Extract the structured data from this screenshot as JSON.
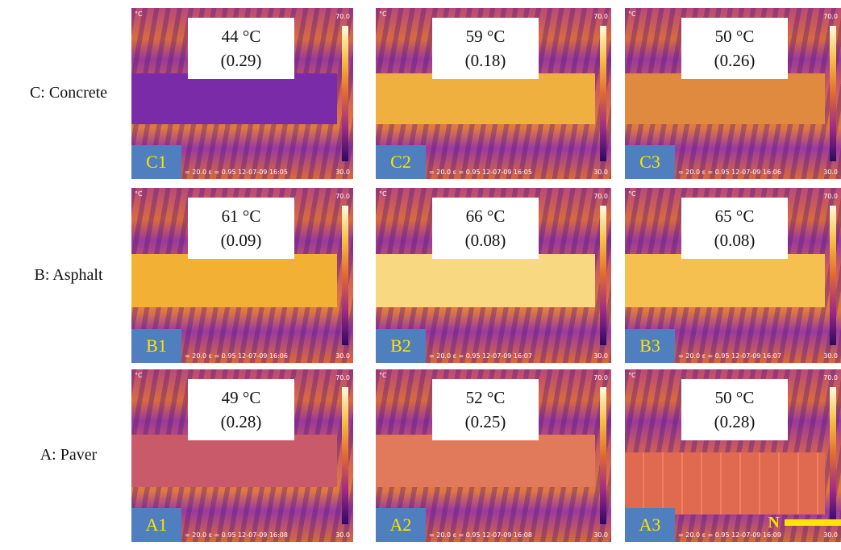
{
  "rows": [
    {
      "label": "C: Concrete",
      "panels": [
        {
          "id": "C1",
          "temperature": "44 °C",
          "albedo": "(0.29)",
          "stamp": "= 20.0  ε = 0.95  12-07-09 16:05"
        },
        {
          "id": "C2",
          "temperature": "59 °C",
          "albedo": "(0.18)",
          "stamp": "= 20.0  ε = 0.95  12-07-09 16:05"
        },
        {
          "id": "C3",
          "temperature": "50 °C",
          "albedo": "(0.26)",
          "stamp": "= 20.0  ε = 0.95  12-07-09 16:06"
        }
      ]
    },
    {
      "label": "B: Asphalt",
      "panels": [
        {
          "id": "B1",
          "temperature": "61 °C",
          "albedo": "(0.09)",
          "stamp": "= 20.0  ε = 0.95  12-07-09 16:06"
        },
        {
          "id": "B2",
          "temperature": "66 °C",
          "albedo": "(0.08)",
          "stamp": "= 20.0  ε = 0.95  12-07-09 16:07"
        },
        {
          "id": "B3",
          "temperature": "65 °C",
          "albedo": "(0.08)",
          "stamp": "= 20.0  ε = 0.95  12-07-09 16:07"
        }
      ]
    },
    {
      "label": "A: Paver",
      "panels": [
        {
          "id": "A1",
          "temperature": "49 °C",
          "albedo": "(0.28)",
          "stamp": "= 20.0  ε = 0.95  12-07-09 16:08"
        },
        {
          "id": "A2",
          "temperature": "52 °C",
          "albedo": "(0.25)",
          "stamp": "= 20.0  ε = 0.95  12-07-09 16:08"
        },
        {
          "id": "A3",
          "temperature": "50 °C",
          "albedo": "(0.28)",
          "stamp": "= 20.0  ε = 0.95  12-07-09 16:09"
        }
      ]
    }
  ],
  "scale": {
    "unit": "°C",
    "max": "70.0",
    "min": "30.0"
  },
  "north_label": "N"
}
